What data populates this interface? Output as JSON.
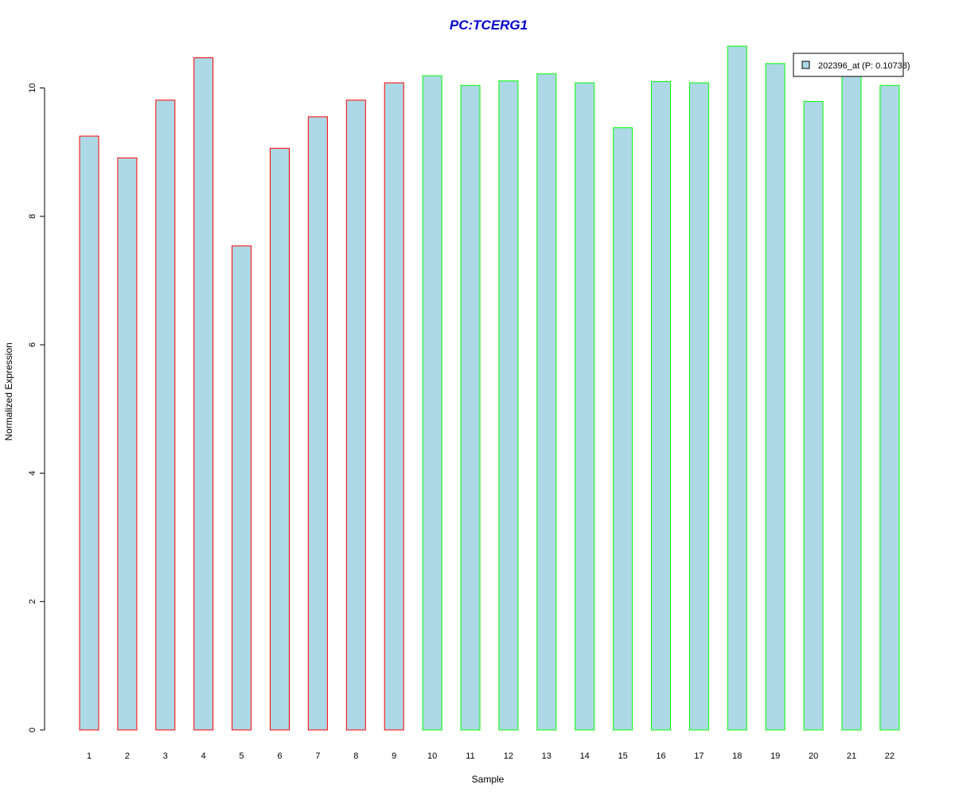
{
  "chart_data": {
    "type": "bar",
    "title": "PC:TCERG1",
    "xlabel": "Sample",
    "ylabel": "Normalized Expression",
    "categories": [
      "1",
      "2",
      "3",
      "4",
      "5",
      "6",
      "7",
      "8",
      "9",
      "10",
      "11",
      "12",
      "13",
      "14",
      "15",
      "16",
      "17",
      "18",
      "19",
      "20",
      "21",
      "22"
    ],
    "series": [
      {
        "name": "202396_at (P: 0.10738)",
        "values": [
          9.25,
          8.91,
          9.81,
          10.47,
          7.54,
          9.06,
          9.55,
          9.81,
          10.08,
          10.19,
          10.04,
          10.11,
          10.22,
          10.08,
          9.38,
          10.1,
          10.08,
          10.65,
          10.38,
          9.79,
          10.18,
          10.04
        ]
      }
    ],
    "groups": [
      {
        "samples": [
          1,
          2,
          3,
          4,
          5,
          6,
          7,
          8,
          9
        ],
        "border_color": "#ff0000"
      },
      {
        "samples": [
          10,
          11,
          12,
          13,
          14,
          15,
          16,
          17,
          18,
          19,
          20,
          21,
          22
        ],
        "border_color": "#00ff00"
      }
    ],
    "yticks": [
      0,
      2,
      4,
      6,
      8,
      10
    ],
    "ylim": [
      0,
      10.65
    ],
    "grid": false,
    "legend_position": "top-right"
  },
  "colors": {
    "bar_fill": "#add8e6",
    "title": "#0000cd",
    "group1_border": "#ff0000",
    "group2_border": "#00ff00"
  }
}
